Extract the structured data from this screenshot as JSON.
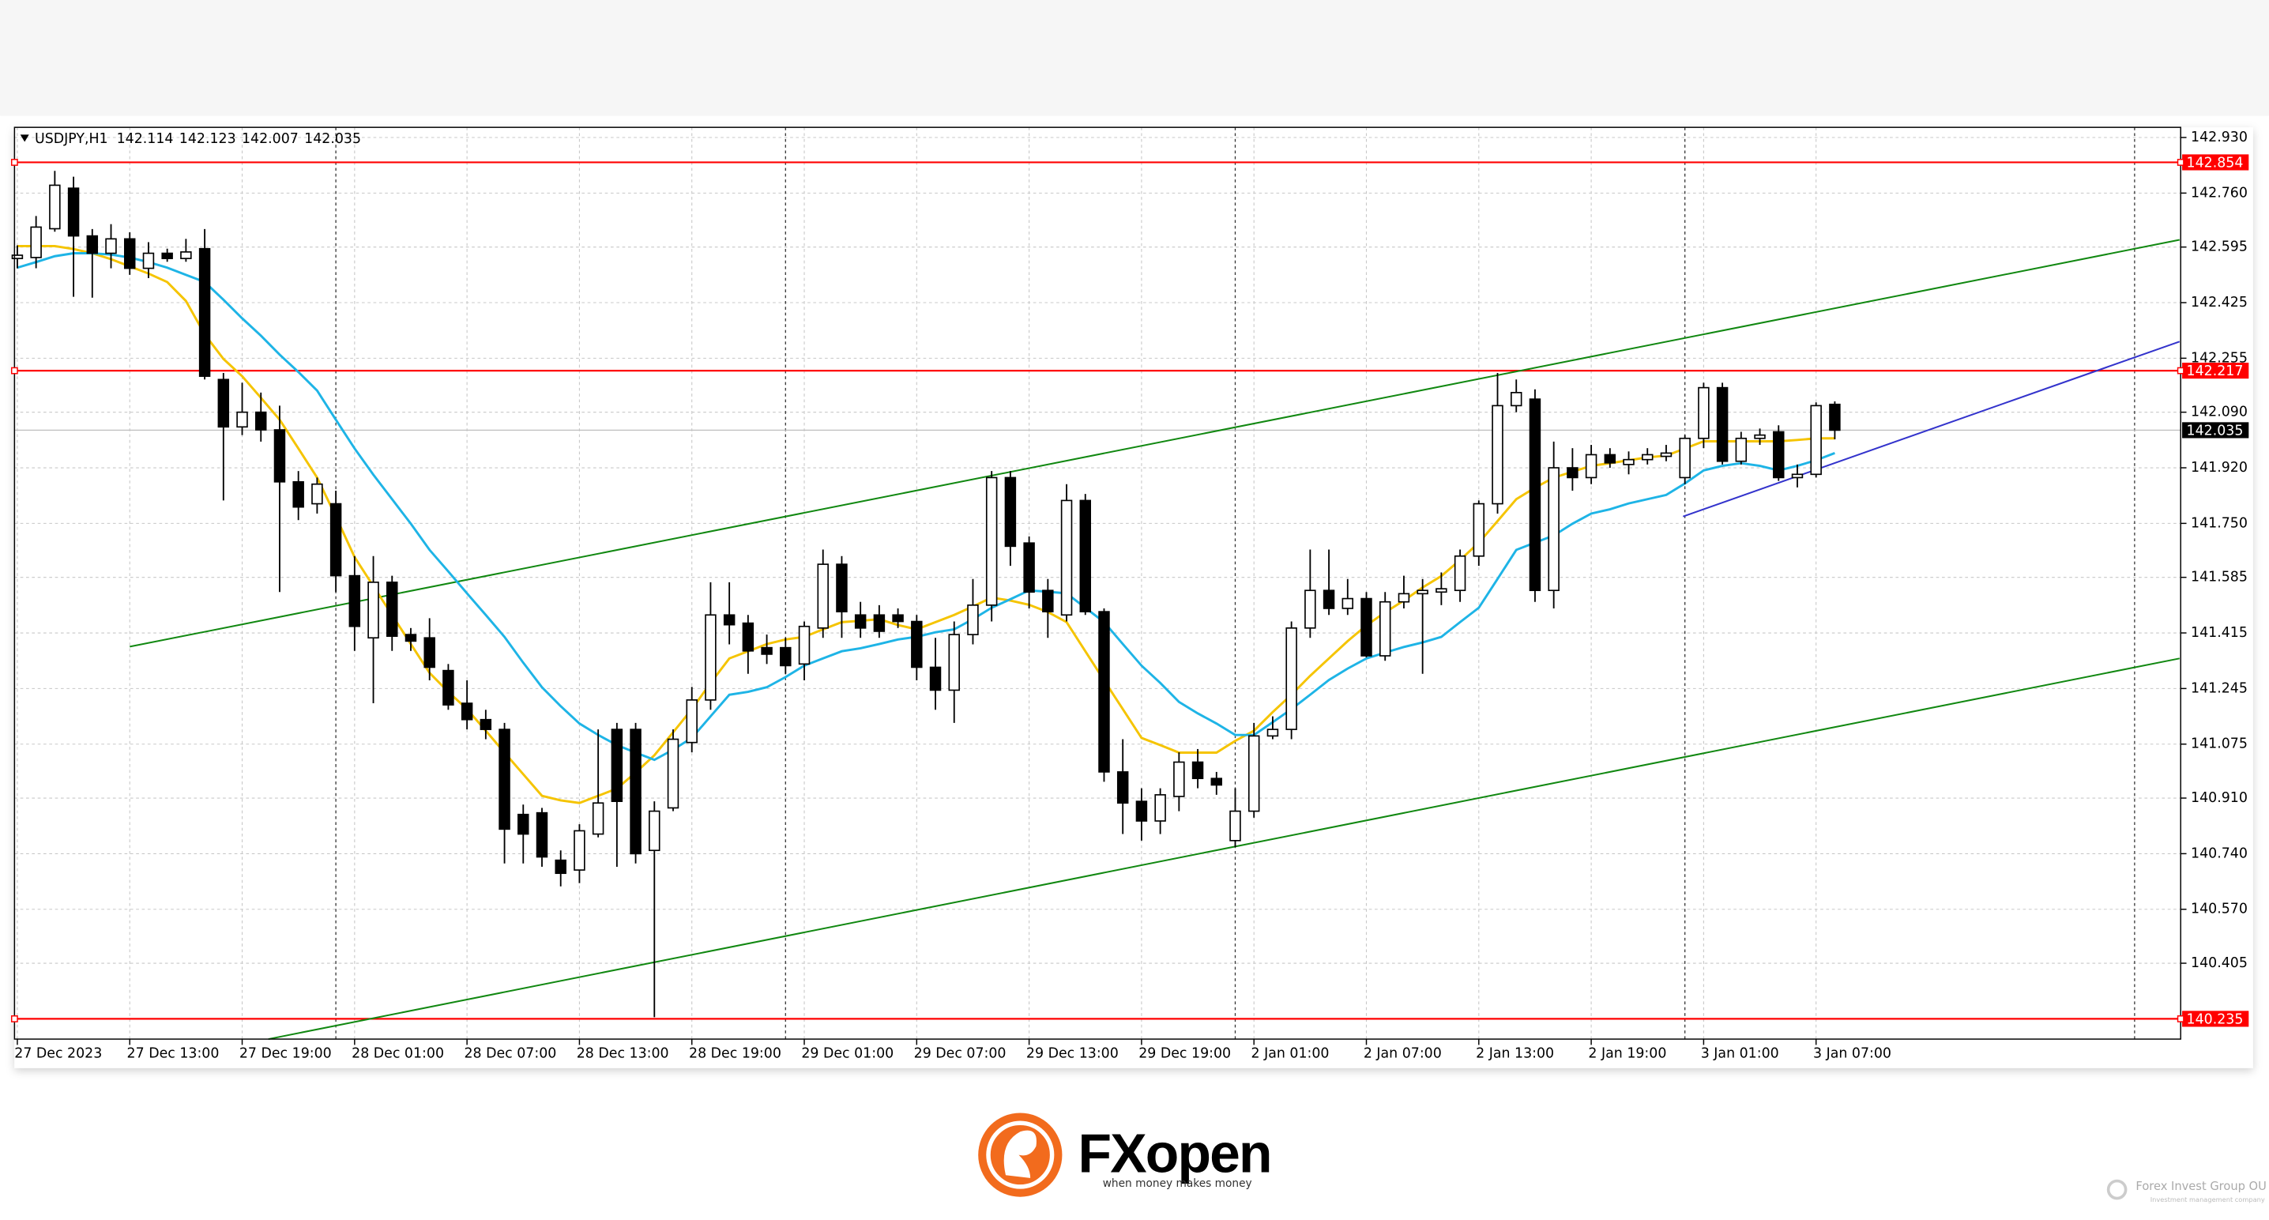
{
  "chart_data": {
    "type": "candlestick",
    "title": "USDJPY,H1",
    "categories": [
      "27 Dec 2023",
      null,
      null,
      null,
      null,
      null,
      "27 Dec 13:00",
      null,
      null,
      null,
      null,
      null,
      "27 Dec 19:00",
      null,
      null,
      null,
      null,
      null,
      "28 Dec 01:00",
      null,
      null,
      null,
      null,
      null,
      "28 Dec 07:00",
      null,
      null,
      null,
      null,
      null,
      "28 Dec 13:00",
      null,
      null,
      null,
      null,
      null,
      "28 Dec 19:00",
      null,
      null,
      null,
      null,
      null,
      "29 Dec 01:00",
      null,
      null,
      null,
      null,
      null,
      "29 Dec 07:00",
      null,
      null,
      null,
      null,
      null,
      "29 Dec 13:00",
      null,
      null,
      null,
      null,
      null,
      "29 Dec 19:00",
      null,
      null,
      null,
      null,
      null,
      "2 Jan 01:00",
      null,
      null,
      null,
      null,
      null,
      "2 Jan 07:00",
      null,
      null,
      null,
      null,
      null,
      "2 Jan 13:00",
      null,
      null,
      null,
      null,
      null,
      "2 Jan 19:00",
      null,
      null,
      null,
      null,
      null,
      "3 Jan 01:00",
      null,
      null,
      null,
      null,
      null,
      "3 Jan 07:00",
      null
    ],
    "open": [
      142.56,
      142.563,
      142.651,
      142.775,
      142.629,
      142.576,
      142.62,
      142.53,
      142.576,
      142.56,
      142.59,
      142.19,
      142.045,
      142.09,
      142.036,
      141.877,
      141.81,
      141.81,
      141.59,
      141.4,
      141.57,
      141.41,
      141.4,
      141.3,
      141.2,
      141.15,
      141.12,
      140.86,
      140.865,
      140.72,
      140.69,
      140.8,
      141.12,
      141.12,
      140.75,
      140.88,
      141.08,
      141.21,
      141.47,
      141.445,
      141.37,
      141.37,
      141.32,
      141.43,
      141.625,
      141.47,
      141.47,
      141.47,
      141.45,
      141.31,
      141.24,
      141.41,
      141.5,
      141.89,
      141.69,
      141.545,
      141.47,
      141.82,
      141.48,
      140.99,
      140.9,
      140.84,
      140.915,
      141.02,
      140.97,
      140.78,
      140.87,
      141.1,
      141.12,
      141.43,
      141.545,
      141.49,
      141.52,
      141.345,
      141.51,
      141.535,
      141.54,
      141.545,
      141.65,
      141.81,
      142.11,
      142.13,
      141.545,
      141.92,
      141.89,
      141.96,
      141.93,
      141.945,
      141.955,
      141.89,
      142.01,
      142.165,
      141.94,
      142.01,
      142.03,
      141.89,
      141.9,
      142.114
    ],
    "high": [
      142.6,
      142.69,
      142.828,
      142.81,
      142.65,
      142.665,
      142.64,
      142.61,
      142.59,
      142.62,
      142.65,
      142.21,
      142.18,
      142.15,
      142.11,
      141.91,
      141.89,
      141.85,
      141.65,
      141.65,
      141.59,
      141.43,
      141.46,
      141.32,
      141.27,
      141.18,
      141.14,
      140.89,
      140.88,
      140.75,
      140.83,
      141.12,
      141.14,
      141.14,
      140.9,
      141.12,
      141.25,
      141.57,
      141.57,
      141.47,
      141.41,
      141.4,
      141.45,
      141.67,
      141.65,
      141.51,
      141.5,
      141.49,
      141.47,
      141.4,
      141.45,
      141.58,
      141.91,
      141.91,
      141.71,
      141.58,
      141.87,
      141.84,
      141.49,
      141.09,
      140.94,
      140.94,
      141.05,
      141.06,
      140.99,
      140.94,
      141.14,
      141.16,
      141.45,
      141.67,
      141.67,
      141.58,
      141.54,
      141.54,
      141.59,
      141.58,
      141.6,
      141.67,
      141.82,
      142.21,
      142.19,
      142.16,
      142.0,
      141.98,
      141.99,
      141.98,
      141.97,
      141.98,
      141.99,
      142.02,
      142.18,
      142.18,
      142.03,
      142.04,
      142.05,
      141.93,
      142.12,
      142.123
    ],
    "low": [
      142.53,
      142.53,
      142.642,
      142.443,
      142.44,
      142.53,
      142.51,
      142.5,
      142.55,
      142.55,
      142.19,
      141.82,
      142.02,
      142.0,
      141.54,
      141.76,
      141.78,
      141.54,
      141.36,
      141.2,
      141.36,
      141.36,
      141.27,
      141.18,
      141.12,
      141.09,
      140.71,
      140.71,
      140.7,
      140.64,
      140.65,
      140.79,
      140.7,
      140.71,
      140.24,
      140.87,
      141.05,
      141.18,
      141.38,
      141.29,
      141.32,
      141.29,
      141.27,
      141.4,
      141.4,
      141.4,
      141.4,
      141.43,
      141.27,
      141.18,
      141.14,
      141.38,
      141.45,
      141.62,
      141.49,
      141.4,
      141.45,
      141.47,
      140.96,
      140.8,
      140.78,
      140.8,
      140.87,
      140.94,
      140.92,
      140.76,
      140.85,
      141.09,
      141.09,
      141.4,
      141.47,
      141.47,
      141.34,
      141.33,
      141.49,
      141.29,
      141.5,
      141.51,
      141.62,
      141.78,
      142.09,
      141.51,
      141.49,
      141.85,
      141.87,
      141.92,
      141.9,
      141.93,
      141.94,
      141.87,
      141.98,
      141.93,
      141.93,
      141.99,
      141.88,
      141.86,
      141.89,
      142.007
    ],
    "close": [
      142.57,
      142.656,
      142.784,
      142.629,
      142.576,
      142.62,
      142.53,
      142.576,
      142.56,
      142.58,
      142.2,
      142.045,
      142.09,
      142.036,
      141.877,
      141.8,
      141.87,
      141.59,
      141.435,
      141.57,
      141.405,
      141.39,
      141.31,
      141.195,
      141.15,
      141.12,
      140.815,
      140.8,
      140.73,
      140.68,
      140.81,
      140.895,
      140.9,
      140.74,
      140.87,
      141.09,
      141.21,
      141.47,
      141.44,
      141.36,
      141.35,
      141.315,
      141.435,
      141.625,
      141.48,
      141.43,
      141.42,
      141.45,
      141.31,
      141.24,
      141.41,
      141.5,
      141.89,
      141.68,
      141.54,
      141.48,
      141.82,
      141.48,
      140.99,
      140.895,
      140.84,
      140.92,
      141.02,
      140.97,
      140.95,
      140.87,
      141.1,
      141.12,
      141.43,
      141.545,
      141.49,
      141.52,
      141.345,
      141.51,
      141.535,
      141.545,
      141.55,
      141.65,
      141.81,
      142.11,
      142.15,
      141.545,
      141.92,
      141.89,
      141.96,
      141.935,
      141.945,
      141.96,
      141.965,
      142.01,
      142.165,
      141.94,
      142.01,
      142.02,
      141.89,
      141.9,
      142.11,
      142.035
    ],
    "series": [
      {
        "color": "#f5c400",
        "values": [
          142.598,
          142.598,
          142.598,
          142.589,
          142.576,
          142.558,
          142.536,
          142.514,
          142.488,
          142.43,
          142.328,
          142.253,
          142.2,
          142.134,
          142.067,
          141.979,
          141.89,
          141.771,
          141.647,
          141.558,
          141.47,
          141.381,
          141.293,
          141.235,
          141.182,
          141.116,
          141.049,
          140.983,
          140.917,
          140.903,
          140.895,
          140.917,
          140.939,
          140.988,
          141.041,
          141.111,
          141.182,
          141.262,
          141.337,
          141.359,
          141.381,
          141.395,
          141.403,
          141.426,
          141.448,
          141.452,
          141.457,
          141.439,
          141.426,
          141.448,
          141.47,
          141.496,
          141.523,
          141.514,
          141.501,
          141.479,
          141.448,
          141.359,
          141.27,
          141.182,
          141.094,
          141.072,
          141.049,
          141.049,
          141.049,
          141.085,
          141.116,
          141.173,
          141.226,
          141.284,
          141.337,
          141.39,
          141.438,
          141.478,
          141.514,
          141.554,
          141.589,
          141.638,
          141.691,
          141.757,
          141.824,
          141.859,
          141.89,
          141.908,
          141.926,
          141.934,
          141.943,
          141.952,
          141.957,
          141.979,
          142.001,
          142.001,
          142.001,
          142.001,
          142.001,
          142.005,
          142.01,
          142.01
        ]
      },
      {
        "color": "#1eb4e6",
        "values": [
          142.532,
          142.549,
          142.567,
          142.576,
          142.576,
          142.572,
          142.563,
          142.549,
          142.532,
          142.51,
          142.488,
          142.434,
          142.377,
          142.324,
          142.266,
          142.213,
          142.156,
          142.067,
          141.979,
          141.899,
          141.824,
          141.749,
          141.669,
          141.603,
          141.536,
          141.47,
          141.403,
          141.324,
          141.249,
          141.191,
          141.138,
          141.103,
          141.072,
          141.049,
          141.027,
          141.058,
          141.094,
          141.16,
          141.226,
          141.235,
          141.249,
          141.28,
          141.315,
          141.337,
          141.359,
          141.368,
          141.381,
          141.395,
          141.403,
          141.417,
          141.426,
          141.457,
          141.492,
          141.518,
          141.545,
          141.541,
          141.536,
          141.492,
          141.448,
          141.381,
          141.315,
          141.262,
          141.204,
          141.169,
          141.138,
          141.103,
          141.103,
          141.142,
          141.182,
          141.226,
          141.271,
          141.306,
          141.337,
          141.355,
          141.372,
          141.386,
          141.403,
          141.448,
          141.492,
          141.58,
          141.669,
          141.691,
          141.713,
          141.749,
          141.78,
          141.793,
          141.811,
          141.824,
          141.837,
          141.872,
          141.912,
          141.926,
          141.934,
          141.926,
          141.912,
          141.926,
          141.943,
          141.965
        ]
      }
    ],
    "xlim": [
      -0.15,
      115.46
    ],
    "ylim": [
      140.173,
      142.961
    ],
    "yticks": [
      {
        "value": 142.93,
        "label": "142.930"
      },
      {
        "value": 142.76,
        "label": "142.760"
      },
      142.595,
      142.425,
      142.255,
      {
        "value": 142.09,
        "label": "142.090"
      },
      {
        "value": 141.92,
        "label": "141.920"
      },
      {
        "value": 141.75,
        "label": "141.750"
      },
      141.585,
      141.415,
      141.245,
      141.075,
      {
        "value": 140.91,
        "label": "140.910"
      },
      {
        "value": 140.74,
        "label": "140.740"
      },
      {
        "value": 140.57,
        "label": "140.570"
      },
      140.405
    ],
    "grid": true,
    "bull_color": "#ffffff",
    "bear_color": "#000000",
    "period_separators": [
      17,
      41,
      65,
      89,
      113
    ],
    "levels": [
      {
        "value": 142.854,
        "color": "#ff0000"
      },
      {
        "value": 142.217,
        "color": "#ff0000"
      },
      {
        "value": 140.235,
        "color": "#ff0000"
      }
    ],
    "current_price": {
      "value": 142.035,
      "color": "#000000"
    },
    "trendlines": [
      {
        "from": [
          6.0,
          141.373
        ],
        "to": [
          115.4,
          142.617
        ],
        "color": "#118811"
      },
      {
        "from": [
          13.4,
          140.173
        ],
        "to": [
          115.4,
          141.337
        ],
        "color": "#118811"
      },
      {
        "from": [
          88.9,
          141.771
        ],
        "to": [
          115.4,
          142.306
        ],
        "color": "#3333cc"
      }
    ]
  },
  "branding": {
    "name": "FXopen",
    "tagline": "when money makes money",
    "company": "Forex Invest Group OU",
    "company_sub": "Investment management company"
  }
}
